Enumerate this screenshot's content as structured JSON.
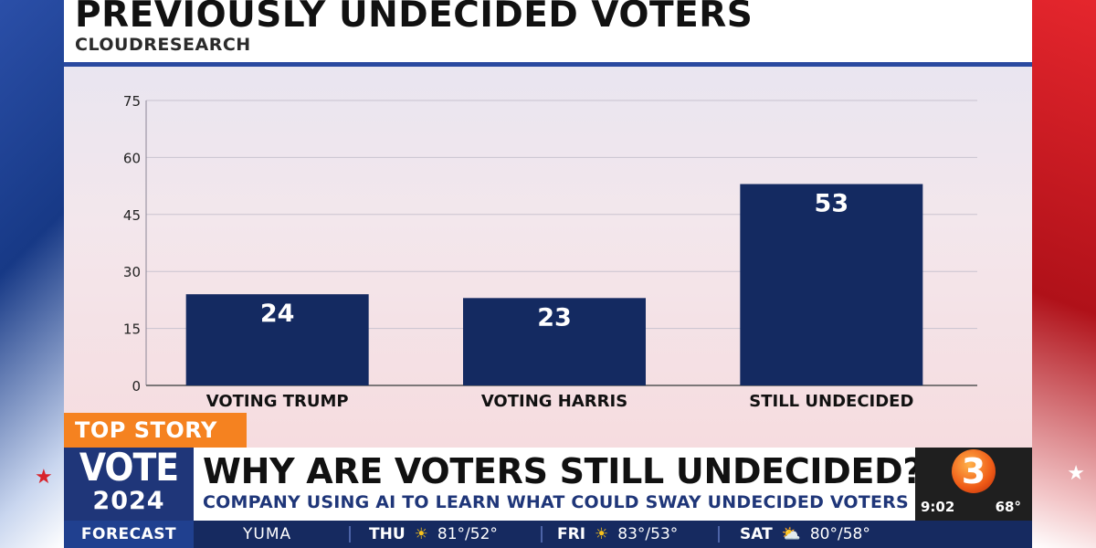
{
  "header": {
    "title": "PREVIOUSLY UNDECIDED VOTERS",
    "source": "CLOUDRESEARCH"
  },
  "chart_data": {
    "type": "bar",
    "title": "PREVIOUSLY UNDECIDED VOTERS",
    "categories": [
      "VOTING TRUMP",
      "VOTING HARRIS",
      "STILL UNDECIDED"
    ],
    "values": [
      24,
      23,
      53
    ],
    "value_labels": [
      "24",
      "23",
      "53"
    ],
    "yticks": [
      "0",
      "15",
      "30",
      "45",
      "60",
      "75"
    ],
    "ylim": [
      0,
      75
    ],
    "xlabel": "",
    "ylabel": "",
    "grid": true,
    "bar_color": "#142a61"
  },
  "lower_third": {
    "tag": "TOP STORY",
    "vote_word": "VOTE",
    "vote_year": "2024",
    "headline": "WHY ARE VOTERS STILL UNDECIDED?",
    "subheadline": "COMPANY USING AI TO LEARN WHAT COULD SWAY UNDECIDED VOTERS",
    "station_logo": "3",
    "time": "9:02",
    "temperature": "68°"
  },
  "ticker": {
    "label": "FORECAST",
    "city": "YUMA",
    "days": [
      {
        "day": "THU",
        "icon": "sun-icon",
        "temps": "81°/52°"
      },
      {
        "day": "FRI",
        "icon": "sun-icon",
        "temps": "83°/53°"
      },
      {
        "day": "SAT",
        "icon": "partly-cloudy-icon",
        "temps": "80°/58°"
      }
    ]
  },
  "colors": {
    "accent_orange": "#f58220",
    "navy": "#1f3679",
    "bar": "#142a61"
  }
}
